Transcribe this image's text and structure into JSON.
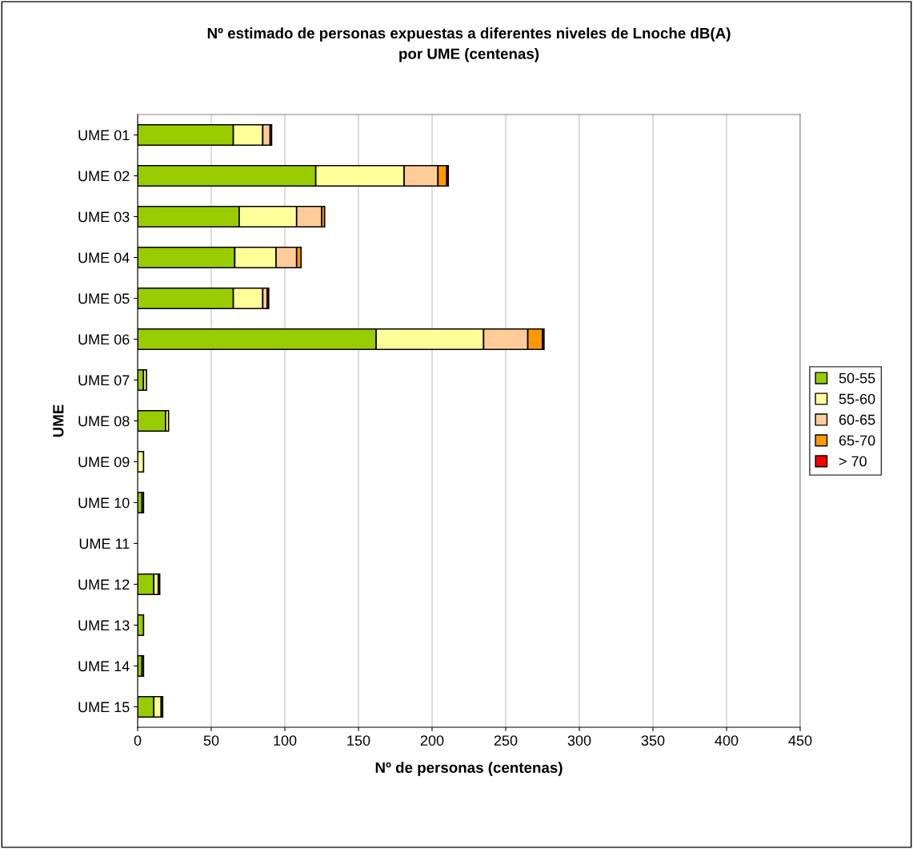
{
  "chart_data": {
    "type": "bar",
    "orientation": "horizontal",
    "stacked": true,
    "title": "Nº estimado de personas expuestas a diferentes niveles de Lnoche dB(A)\npor UME (centenas)",
    "xlabel": "Nº de personas (centenas)",
    "ylabel": "UME",
    "categories": [
      "UME 01",
      "UME 02",
      "UME 03",
      "UME 04",
      "UME 05",
      "UME 06",
      "UME 07",
      "UME 08",
      "UME 09",
      "UME 10",
      "UME 11",
      "UME 12",
      "UME 13",
      "UME 14",
      "UME 15"
    ],
    "series": [
      {
        "name": "50-55",
        "color": "#99cc00",
        "values": [
          65,
          121,
          69,
          66,
          65,
          162,
          4,
          19,
          null,
          3,
          null,
          11,
          4,
          3,
          11
        ]
      },
      {
        "name": "55-60",
        "color": "#ffff99",
        "values": [
          20,
          60,
          39,
          28,
          20,
          73,
          2,
          2,
          4,
          1,
          null,
          3,
          null,
          1,
          5
        ]
      },
      {
        "name": "60-65",
        "color": "#ffcc99",
        "values": [
          5,
          23,
          17,
          14,
          3,
          30,
          null,
          null,
          null,
          null,
          null,
          1,
          null,
          null,
          1
        ]
      },
      {
        "name": "65-70",
        "color": "#ff9900",
        "values": [
          1,
          6,
          2,
          3,
          1,
          10,
          null,
          null,
          null,
          null,
          null,
          null,
          null,
          null,
          null
        ]
      },
      {
        "name": "> 70",
        "color": "#ff0000",
        "values": [
          null,
          1,
          null,
          null,
          null,
          1,
          null,
          null,
          null,
          null,
          null,
          null,
          null,
          null,
          null
        ]
      }
    ],
    "xlim": [
      0,
      450
    ],
    "xticks": [
      0,
      50,
      100,
      150,
      200,
      250,
      300,
      350,
      400,
      450
    ],
    "grid": "x",
    "legend": "right"
  }
}
